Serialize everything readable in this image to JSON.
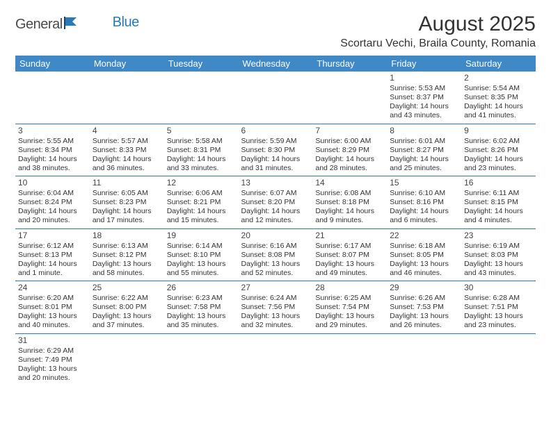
{
  "logo": {
    "text1": "General",
    "text2": "Blue"
  },
  "title": {
    "month_year": "August 2025",
    "location": "Scortaru Vechi, Braila County, Romania"
  },
  "colors": {
    "header_bg": "#3e89c6",
    "header_text": "#ffffff",
    "cell_border": "#2a7ab8",
    "body_text": "#333333",
    "logo_gray": "#4a4a4a",
    "logo_blue": "#2a7ab8",
    "background": "#ffffff"
  },
  "fonts": {
    "title_size_pt": 30,
    "location_size_pt": 16,
    "dow_size_pt": 13,
    "daynum_size_pt": 12,
    "body_size_pt": 10.5
  },
  "days_of_week": [
    "Sunday",
    "Monday",
    "Tuesday",
    "Wednesday",
    "Thursday",
    "Friday",
    "Saturday"
  ],
  "weeks": [
    [
      null,
      null,
      null,
      null,
      null,
      {
        "n": "1",
        "sr": "Sunrise: 5:53 AM",
        "ss": "Sunset: 8:37 PM",
        "dl1": "Daylight: 14 hours",
        "dl2": "and 43 minutes."
      },
      {
        "n": "2",
        "sr": "Sunrise: 5:54 AM",
        "ss": "Sunset: 8:35 PM",
        "dl1": "Daylight: 14 hours",
        "dl2": "and 41 minutes."
      }
    ],
    [
      {
        "n": "3",
        "sr": "Sunrise: 5:55 AM",
        "ss": "Sunset: 8:34 PM",
        "dl1": "Daylight: 14 hours",
        "dl2": "and 38 minutes."
      },
      {
        "n": "4",
        "sr": "Sunrise: 5:57 AM",
        "ss": "Sunset: 8:33 PM",
        "dl1": "Daylight: 14 hours",
        "dl2": "and 36 minutes."
      },
      {
        "n": "5",
        "sr": "Sunrise: 5:58 AM",
        "ss": "Sunset: 8:31 PM",
        "dl1": "Daylight: 14 hours",
        "dl2": "and 33 minutes."
      },
      {
        "n": "6",
        "sr": "Sunrise: 5:59 AM",
        "ss": "Sunset: 8:30 PM",
        "dl1": "Daylight: 14 hours",
        "dl2": "and 31 minutes."
      },
      {
        "n": "7",
        "sr": "Sunrise: 6:00 AM",
        "ss": "Sunset: 8:29 PM",
        "dl1": "Daylight: 14 hours",
        "dl2": "and 28 minutes."
      },
      {
        "n": "8",
        "sr": "Sunrise: 6:01 AM",
        "ss": "Sunset: 8:27 PM",
        "dl1": "Daylight: 14 hours",
        "dl2": "and 25 minutes."
      },
      {
        "n": "9",
        "sr": "Sunrise: 6:02 AM",
        "ss": "Sunset: 8:26 PM",
        "dl1": "Daylight: 14 hours",
        "dl2": "and 23 minutes."
      }
    ],
    [
      {
        "n": "10",
        "sr": "Sunrise: 6:04 AM",
        "ss": "Sunset: 8:24 PM",
        "dl1": "Daylight: 14 hours",
        "dl2": "and 20 minutes."
      },
      {
        "n": "11",
        "sr": "Sunrise: 6:05 AM",
        "ss": "Sunset: 8:23 PM",
        "dl1": "Daylight: 14 hours",
        "dl2": "and 17 minutes."
      },
      {
        "n": "12",
        "sr": "Sunrise: 6:06 AM",
        "ss": "Sunset: 8:21 PM",
        "dl1": "Daylight: 14 hours",
        "dl2": "and 15 minutes."
      },
      {
        "n": "13",
        "sr": "Sunrise: 6:07 AM",
        "ss": "Sunset: 8:20 PM",
        "dl1": "Daylight: 14 hours",
        "dl2": "and 12 minutes."
      },
      {
        "n": "14",
        "sr": "Sunrise: 6:08 AM",
        "ss": "Sunset: 8:18 PM",
        "dl1": "Daylight: 14 hours",
        "dl2": "and 9 minutes."
      },
      {
        "n": "15",
        "sr": "Sunrise: 6:10 AM",
        "ss": "Sunset: 8:16 PM",
        "dl1": "Daylight: 14 hours",
        "dl2": "and 6 minutes."
      },
      {
        "n": "16",
        "sr": "Sunrise: 6:11 AM",
        "ss": "Sunset: 8:15 PM",
        "dl1": "Daylight: 14 hours",
        "dl2": "and 4 minutes."
      }
    ],
    [
      {
        "n": "17",
        "sr": "Sunrise: 6:12 AM",
        "ss": "Sunset: 8:13 PM",
        "dl1": "Daylight: 14 hours",
        "dl2": "and 1 minute."
      },
      {
        "n": "18",
        "sr": "Sunrise: 6:13 AM",
        "ss": "Sunset: 8:12 PM",
        "dl1": "Daylight: 13 hours",
        "dl2": "and 58 minutes."
      },
      {
        "n": "19",
        "sr": "Sunrise: 6:14 AM",
        "ss": "Sunset: 8:10 PM",
        "dl1": "Daylight: 13 hours",
        "dl2": "and 55 minutes."
      },
      {
        "n": "20",
        "sr": "Sunrise: 6:16 AM",
        "ss": "Sunset: 8:08 PM",
        "dl1": "Daylight: 13 hours",
        "dl2": "and 52 minutes."
      },
      {
        "n": "21",
        "sr": "Sunrise: 6:17 AM",
        "ss": "Sunset: 8:07 PM",
        "dl1": "Daylight: 13 hours",
        "dl2": "and 49 minutes."
      },
      {
        "n": "22",
        "sr": "Sunrise: 6:18 AM",
        "ss": "Sunset: 8:05 PM",
        "dl1": "Daylight: 13 hours",
        "dl2": "and 46 minutes."
      },
      {
        "n": "23",
        "sr": "Sunrise: 6:19 AM",
        "ss": "Sunset: 8:03 PM",
        "dl1": "Daylight: 13 hours",
        "dl2": "and 43 minutes."
      }
    ],
    [
      {
        "n": "24",
        "sr": "Sunrise: 6:20 AM",
        "ss": "Sunset: 8:01 PM",
        "dl1": "Daylight: 13 hours",
        "dl2": "and 40 minutes."
      },
      {
        "n": "25",
        "sr": "Sunrise: 6:22 AM",
        "ss": "Sunset: 8:00 PM",
        "dl1": "Daylight: 13 hours",
        "dl2": "and 37 minutes."
      },
      {
        "n": "26",
        "sr": "Sunrise: 6:23 AM",
        "ss": "Sunset: 7:58 PM",
        "dl1": "Daylight: 13 hours",
        "dl2": "and 35 minutes."
      },
      {
        "n": "27",
        "sr": "Sunrise: 6:24 AM",
        "ss": "Sunset: 7:56 PM",
        "dl1": "Daylight: 13 hours",
        "dl2": "and 32 minutes."
      },
      {
        "n": "28",
        "sr": "Sunrise: 6:25 AM",
        "ss": "Sunset: 7:54 PM",
        "dl1": "Daylight: 13 hours",
        "dl2": "and 29 minutes."
      },
      {
        "n": "29",
        "sr": "Sunrise: 6:26 AM",
        "ss": "Sunset: 7:53 PM",
        "dl1": "Daylight: 13 hours",
        "dl2": "and 26 minutes."
      },
      {
        "n": "30",
        "sr": "Sunrise: 6:28 AM",
        "ss": "Sunset: 7:51 PM",
        "dl1": "Daylight: 13 hours",
        "dl2": "and 23 minutes."
      }
    ],
    [
      {
        "n": "31",
        "sr": "Sunrise: 6:29 AM",
        "ss": "Sunset: 7:49 PM",
        "dl1": "Daylight: 13 hours",
        "dl2": "and 20 minutes."
      },
      null,
      null,
      null,
      null,
      null,
      null
    ]
  ]
}
